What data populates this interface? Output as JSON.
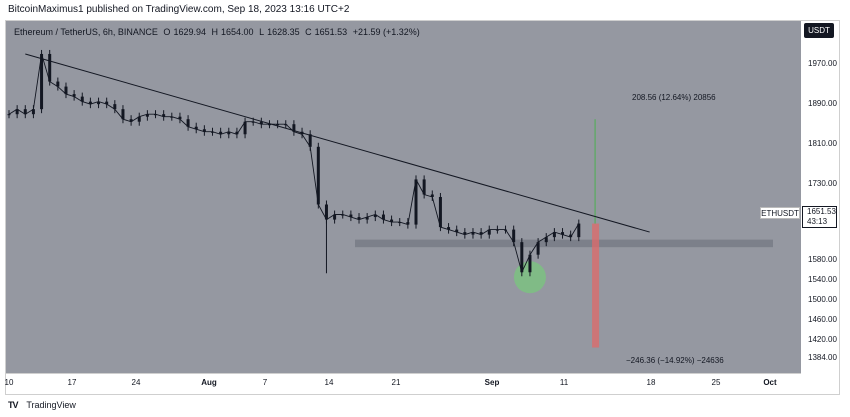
{
  "header": {
    "published_line": "BitcoinMaximus1 published on TradingView.com, Sep 18, 2023 13:16 UTC+2"
  },
  "legend": {
    "symbol": "Ethereum / TetherUS, 6h, BINANCE",
    "open_label": "O",
    "open": "1629.94",
    "high_label": "H",
    "high": "1654.00",
    "low_label": "L",
    "low": "1628.35",
    "close_label": "C",
    "close": "1651.53",
    "change": "+21.59 (+1.32%)"
  },
  "currency_badge": "USDT",
  "last_price": {
    "symbol": "ETHUSDT",
    "value": "1651.53",
    "countdown": "43:13"
  },
  "annotations": {
    "upper": "208.56 (12.64%) 20856",
    "lower": "−246.36 (−14.92%) −24636"
  },
  "branding": {
    "logo": "TV",
    "name": "TradingView"
  },
  "colors": {
    "plot_bg": "#9598a1",
    "candle": "#131722",
    "trendline": "#131722",
    "support_band": "#787b86",
    "target_up": "#4caf50",
    "target_down": "#e06a6a",
    "highlight_circle": "#7bc47f"
  },
  "chart_data": {
    "type": "line",
    "title": "Ethereum / TetherUS, 6h, BINANCE",
    "xlabel": "",
    "ylabel": "",
    "y_ticks": [
      "1970.00",
      "1890.00",
      "1810.00",
      "1730.00",
      "1680.00",
      "1580.00",
      "1540.00",
      "1500.00",
      "1460.00",
      "1420.00",
      "1384.00"
    ],
    "x_ticks": [
      "10",
      "17",
      "24",
      "Aug",
      "7",
      "14",
      "21",
      "Sep",
      "11",
      "18",
      "25",
      "Oct"
    ],
    "x_ticks_bold": [
      "Aug",
      "Sep",
      "Oct"
    ],
    "ylim": [
      1360,
      2000
    ],
    "grid": false,
    "series": [
      {
        "x": [
          "Jul 10",
          "Jul 11",
          "Jul 12",
          "Jul 13",
          "Jul 14",
          "Jul 15",
          "Jul 16",
          "Jul 17",
          "Jul 18",
          "Jul 19",
          "Jul 20",
          "Jul 21",
          "Jul 22",
          "Jul 23",
          "Jul 24",
          "Jul 25",
          "Jul 26",
          "Jul 27",
          "Jul 28",
          "Jul 29",
          "Jul 30",
          "Jul 31",
          "Aug 1",
          "Aug 2",
          "Aug 3",
          "Aug 4",
          "Aug 5",
          "Aug 6",
          "Aug 7",
          "Aug 8",
          "Aug 9",
          "Aug 10",
          "Aug 11",
          "Aug 12",
          "Aug 13",
          "Aug 14",
          "Aug 15",
          "Aug 16",
          "Aug 17",
          "Aug 18",
          "Aug 19",
          "Aug 20",
          "Aug 21",
          "Aug 22",
          "Aug 23",
          "Aug 24",
          "Aug 25",
          "Aug 26",
          "Aug 27",
          "Aug 28",
          "Aug 29",
          "Aug 30",
          "Aug 31",
          "Sep 1",
          "Sep 2",
          "Sep 3",
          "Sep 4",
          "Sep 5",
          "Sep 6",
          "Sep 7",
          "Sep 8",
          "Sep 9",
          "Sep 10",
          "Sep 11",
          "Sep 12",
          "Sep 13",
          "Sep 14",
          "Sep 15",
          "Sep 16",
          "Sep 17",
          "Sep 18"
        ],
        "values": [
          1870,
          1880,
          1870,
          1880,
          1990,
          1935,
          1925,
          1910,
          1905,
          1895,
          1890,
          1895,
          1890,
          1880,
          1860,
          1855,
          1865,
          1870,
          1870,
          1865,
          1865,
          1860,
          1845,
          1840,
          1835,
          1835,
          1830,
          1835,
          1830,
          1855,
          1855,
          1850,
          1850,
          1850,
          1850,
          1835,
          1830,
          1805,
          1690,
          1660,
          1670,
          1670,
          1665,
          1660,
          1665,
          1670,
          1660,
          1655,
          1655,
          1650,
          1740,
          1710,
          1705,
          1645,
          1640,
          1635,
          1630,
          1635,
          1630,
          1640,
          1640,
          1640,
          1615,
          1555,
          1590,
          1615,
          1625,
          1635,
          1630,
          1625,
          1652
        ]
      }
    ],
    "trendline": {
      "from": [
        "Jul 12",
        1990
      ],
      "to": [
        "Sep 24",
        1655
      ]
    },
    "support_band": [
      1605,
      1620
    ],
    "projection": {
      "at": "Sep 20",
      "up_to": 1860,
      "down_to": 1405,
      "base": 1652
    },
    "highlight": {
      "at": "Sep 12",
      "value": 1545
    }
  }
}
